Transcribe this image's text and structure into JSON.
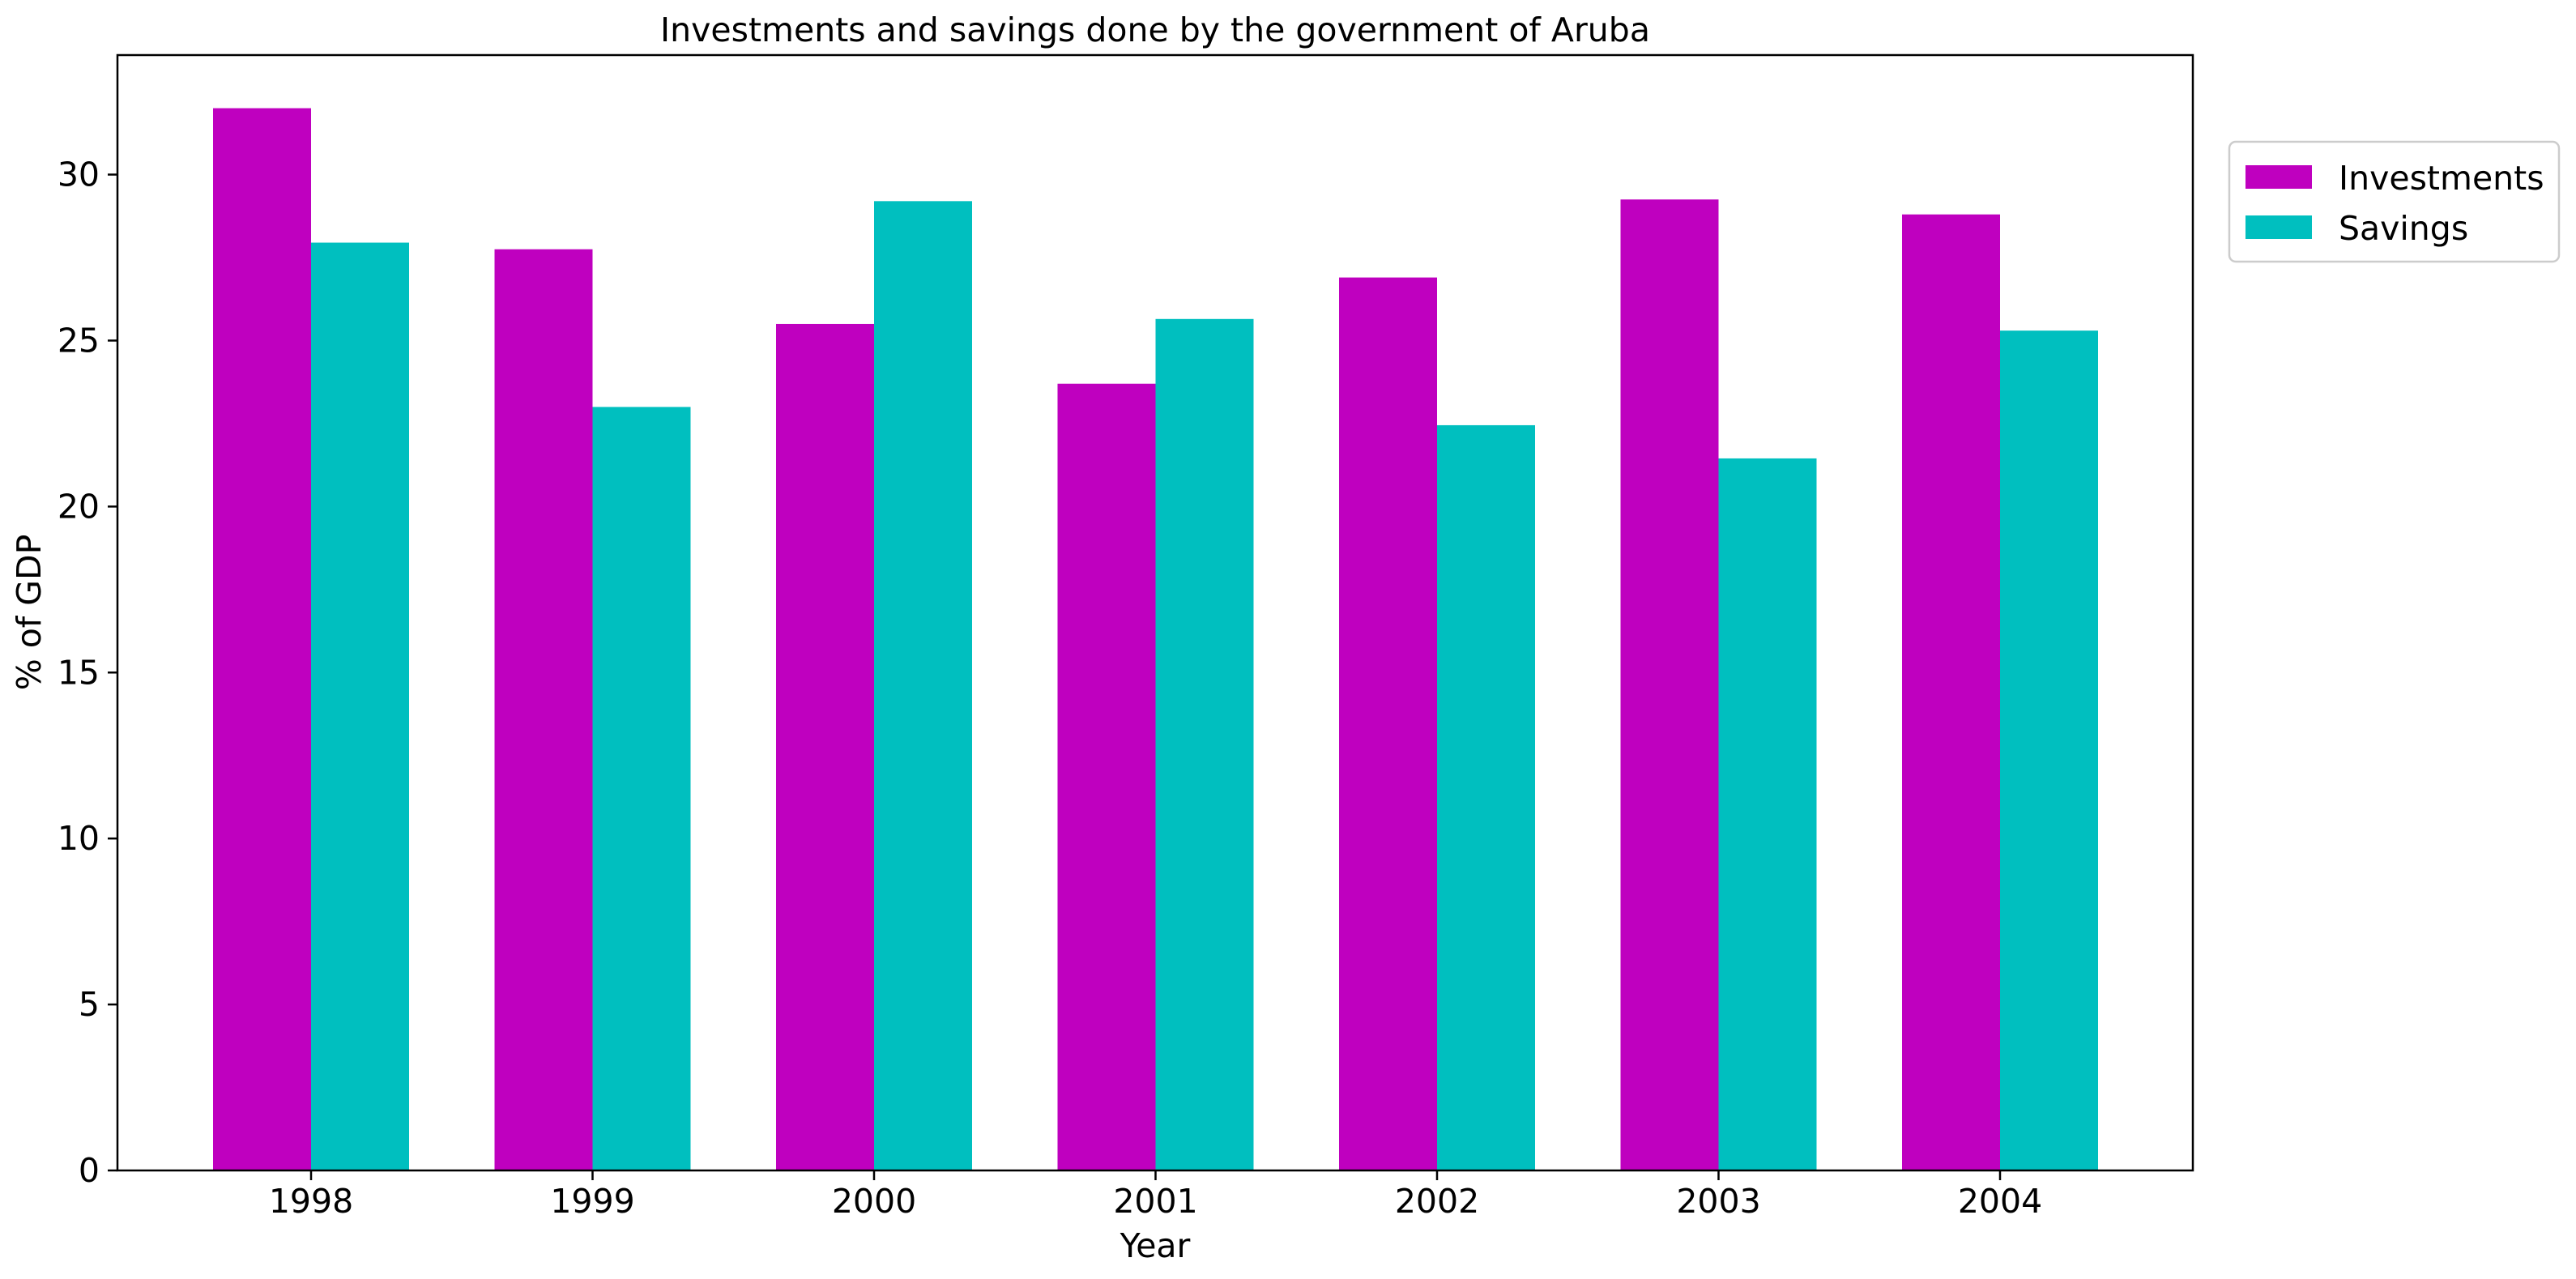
{
  "chart_data": {
    "type": "bar",
    "title": "Investments and savings done by the government of Aruba",
    "xlabel": "Year",
    "ylabel": "% of GDP",
    "categories": [
      "1998",
      "1999",
      "2000",
      "2001",
      "2002",
      "2003",
      "2004"
    ],
    "series": [
      {
        "name": "Investments",
        "color": "#bf00bf",
        "values": [
          32.0,
          27.75,
          25.5,
          23.7,
          26.9,
          29.25,
          28.8
        ]
      },
      {
        "name": "Savings",
        "color": "#00bfbf",
        "values": [
          27.95,
          23.0,
          29.2,
          25.65,
          22.45,
          21.45,
          25.3
        ]
      }
    ],
    "ylim": [
      0,
      33.6
    ],
    "yticks": [
      "0",
      "5",
      "10",
      "15",
      "20",
      "25",
      "30"
    ],
    "grid": false,
    "legend_position": "top-right, outside plot"
  }
}
